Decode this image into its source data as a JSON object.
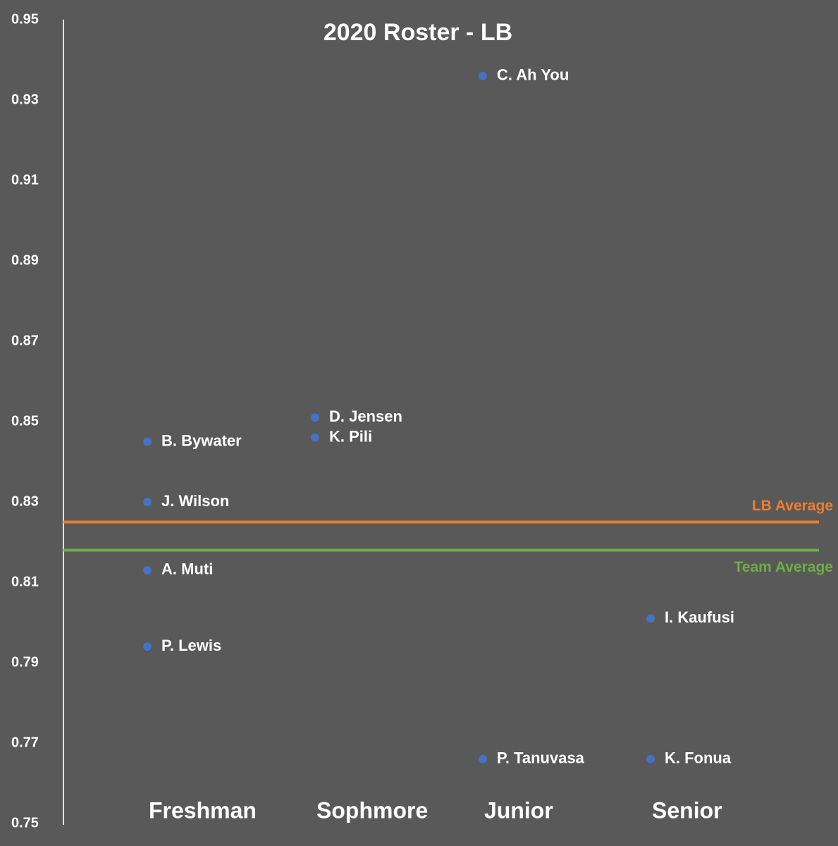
{
  "chart_data": {
    "type": "scatter",
    "title": "2020 Roster - LB",
    "categories": [
      "Freshman",
      "Sophmore",
      "Junior",
      "Senior"
    ],
    "points": [
      {
        "name": "B. Bywater",
        "category": "Freshman",
        "value": 0.845
      },
      {
        "name": "J. Wilson",
        "category": "Freshman",
        "value": 0.83
      },
      {
        "name": "A. Muti",
        "category": "Freshman",
        "value": 0.813
      },
      {
        "name": "P. Lewis",
        "category": "Freshman",
        "value": 0.794
      },
      {
        "name": "D. Jensen",
        "category": "Sophmore",
        "value": 0.851
      },
      {
        "name": "K. Pili",
        "category": "Sophmore",
        "value": 0.846
      },
      {
        "name": "C. Ah You",
        "category": "Junior",
        "value": 0.936
      },
      {
        "name": "P. Tanuvasa",
        "category": "Junior",
        "value": 0.766
      },
      {
        "name": "I. Kaufusi",
        "category": "Senior",
        "value": 0.801
      },
      {
        "name": "K. Fonua",
        "category": "Senior",
        "value": 0.766
      }
    ],
    "color": "#4472c4",
    "reference_lines": [
      {
        "name": "LB Average",
        "value": 0.825,
        "color": "#ed7d31"
      },
      {
        "name": "Team Average",
        "value": 0.818,
        "color": "#70ad47"
      }
    ],
    "ylim": [
      0.75,
      0.95
    ],
    "yticks": [
      0.75,
      0.77,
      0.79,
      0.81,
      0.83,
      0.85,
      0.87,
      0.89,
      0.91,
      0.93,
      0.95
    ],
    "grid": false
  }
}
